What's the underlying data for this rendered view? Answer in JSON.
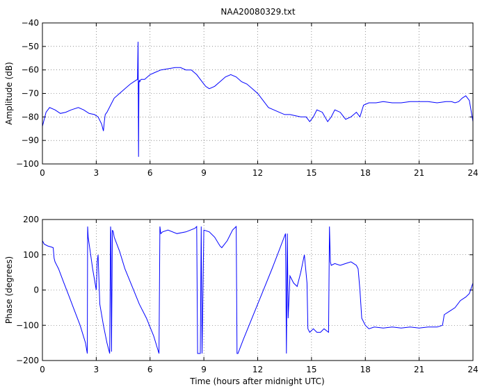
{
  "chart_data": [
    {
      "type": "line",
      "title": "NAA20080329.txt",
      "xlabel": "",
      "ylabel": "Amplitude (dB)",
      "xlim": [
        0,
        24
      ],
      "ylim": [
        -100,
        -40
      ],
      "xticks": [
        "0",
        "3",
        "6",
        "9",
        "12",
        "15",
        "18",
        "21",
        "24"
      ],
      "yticks": [
        "-100",
        "-90",
        "-80",
        "-70",
        "-60",
        "-50",
        "-40"
      ],
      "grid": true,
      "series": [
        {
          "color": "#0000ff",
          "x": [
            0,
            0.2,
            0.4,
            0.7,
            1.0,
            1.3,
            1.6,
            2.0,
            2.3,
            2.6,
            2.9,
            3.1,
            3.3,
            3.4,
            3.45,
            3.5,
            3.6,
            3.8,
            4.0,
            4.3,
            4.6,
            4.9,
            5.1,
            5.3,
            5.33,
            5.36,
            5.38,
            5.4,
            5.43,
            5.46,
            5.5,
            5.7,
            6.0,
            6.3,
            6.6,
            7.0,
            7.4,
            7.7,
            8.0,
            8.3,
            8.6,
            8.9,
            9.1,
            9.3,
            9.6,
            9.9,
            10.2,
            10.5,
            10.8,
            11.1,
            11.4,
            11.7,
            12.0,
            12.3,
            12.6,
            12.9,
            13.2,
            13.5,
            13.8,
            14.1,
            14.4,
            14.7,
            14.9,
            15.1,
            15.3,
            15.6,
            15.9,
            16.1,
            16.3,
            16.6,
            16.9,
            17.2,
            17.5,
            17.7,
            17.9,
            18.2,
            18.6,
            19.0,
            19.5,
            20.0,
            20.5,
            21.0,
            21.5,
            22.0,
            22.5,
            22.8,
            23.0,
            23.2,
            23.4,
            23.6,
            23.8,
            24.0
          ],
          "values": [
            -84,
            -78,
            -76,
            -77,
            -78.5,
            -78,
            -77,
            -76,
            -77,
            -78.5,
            -79,
            -80,
            -83,
            -86,
            -82,
            -79,
            -78,
            -75,
            -72,
            -70,
            -68,
            -66,
            -65,
            -64,
            -48,
            -97,
            -65,
            -64.5,
            -65,
            -64.5,
            -64,
            -64,
            -62,
            -61,
            -60,
            -59.5,
            -59,
            -59,
            -60,
            -60,
            -62,
            -65,
            -67,
            -68,
            -67,
            -65,
            -63,
            -62,
            -63,
            -65,
            -66,
            -68,
            -70,
            -73,
            -76,
            -77,
            -78,
            -79,
            -79,
            -79.5,
            -80,
            -80,
            -82,
            -80,
            -77,
            -78,
            -82,
            -80,
            -77,
            -78,
            -81,
            -80,
            -78,
            -80,
            -75,
            -74,
            -74,
            -73.5,
            -74,
            -74,
            -73.5,
            -73.5,
            -73.5,
            -74,
            -73.5,
            -73.5,
            -74,
            -73.5,
            -72,
            -71,
            -73,
            -82
          ]
        }
      ]
    },
    {
      "type": "line",
      "title": "",
      "xlabel": "Time (hours after midnight UTC)",
      "ylabel": "Phase (degrees)",
      "xlim": [
        0,
        24
      ],
      "ylim": [
        -200,
        200
      ],
      "xticks": [
        "0",
        "3",
        "6",
        "9",
        "12",
        "15",
        "18",
        "21",
        "24"
      ],
      "yticks": [
        "-200",
        "-100",
        "0",
        "100",
        "200"
      ],
      "grid": true,
      "series": [
        {
          "color": "#0000ff",
          "x": [
            0,
            0.1,
            0.3,
            0.5,
            0.6,
            0.65,
            0.7,
            0.9,
            1.2,
            1.5,
            1.8,
            2.1,
            2.4,
            2.5,
            2.52,
            2.55,
            2.8,
            3.0,
            3.05,
            3.1,
            3.2,
            3.4,
            3.6,
            3.75,
            3.8,
            3.82,
            3.85,
            3.9,
            3.95,
            4.0,
            4.3,
            4.6,
            5.0,
            5.4,
            5.8,
            6.2,
            6.5,
            6.55,
            6.6,
            6.7,
            7.0,
            7.5,
            8.0,
            8.5,
            8.6,
            8.65,
            8.8,
            8.85,
            8.9,
            9.0,
            9.3,
            9.6,
            9.9,
            10.0,
            10.3,
            10.6,
            10.8,
            10.85,
            10.9,
            11.2,
            11.6,
            12.0,
            12.4,
            12.8,
            13.1,
            13.4,
            13.55,
            13.6,
            13.65,
            13.7,
            13.8,
            14.0,
            14.2,
            14.4,
            14.6,
            14.75,
            14.8,
            14.9,
            15.1,
            15.3,
            15.5,
            15.7,
            15.95,
            16.0,
            16.05,
            16.1,
            16.3,
            16.6,
            16.9,
            17.2,
            17.5,
            17.6,
            17.7,
            17.75,
            17.8,
            18.0,
            18.2,
            18.5,
            19.0,
            19.5,
            20.0,
            20.5,
            21.0,
            21.5,
            22.0,
            22.3,
            22.4,
            22.7,
            23.0,
            23.3,
            23.6,
            23.8,
            24.0
          ],
          "values": [
            140,
            130,
            125,
            122,
            120,
            90,
            80,
            60,
            20,
            -20,
            -60,
            -100,
            -150,
            -180,
            180,
            150,
            60,
            0,
            80,
            100,
            -40,
            -100,
            -150,
            -180,
            180,
            160,
            -175,
            170,
            165,
            150,
            110,
            60,
            10,
            -40,
            -80,
            -130,
            -180,
            180,
            160,
            165,
            170,
            160,
            165,
            175,
            180,
            -180,
            -180,
            180,
            -180,
            170,
            165,
            150,
            125,
            120,
            140,
            170,
            180,
            -180,
            -180,
            -140,
            -90,
            -40,
            10,
            60,
            100,
            140,
            160,
            -180,
            160,
            -80,
            40,
            20,
            10,
            50,
            100,
            20,
            -110,
            -120,
            -110,
            -120,
            -120,
            -110,
            -120,
            180,
            80,
            70,
            75,
            70,
            75,
            80,
            70,
            60,
            0,
            -40,
            -80,
            -100,
            -110,
            -105,
            -108,
            -105,
            -108,
            -105,
            -108,
            -105,
            -105,
            -100,
            -70,
            -60,
            -50,
            -30,
            -20,
            -10,
            20
          ]
        }
      ]
    }
  ]
}
